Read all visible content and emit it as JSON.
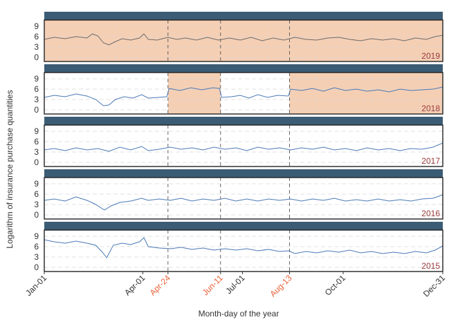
{
  "chart_data": {
    "type": "line",
    "title": "",
    "xlabel": "Month-day of the year",
    "ylabel": "Logarithm of insurance purchase quantities",
    "ylim": [
      0,
      10
    ],
    "y_ticks": [
      "0",
      "3",
      "6",
      "9"
    ],
    "x_ticks": [
      {
        "label": "Jan-01",
        "day": 1,
        "highlight": false
      },
      {
        "label": "Apr-01",
        "day": 91,
        "highlight": false
      },
      {
        "label": "Apr-24",
        "day": 114,
        "highlight": true
      },
      {
        "label": "Jun-11",
        "day": 162,
        "highlight": true
      },
      {
        "label": "Jul-01",
        "day": 182,
        "highlight": false
      },
      {
        "label": "Aug-13",
        "day": 225,
        "highlight": true
      },
      {
        "label": "Oct-01",
        "day": 274,
        "highlight": false
      },
      {
        "label": "Dec-31",
        "day": 365,
        "highlight": false
      }
    ],
    "vlines_days": [
      114,
      162,
      225
    ],
    "grid": true,
    "highlight_tick_color": "#e8623a",
    "year_label_color": "#9b3b3b",
    "strip_color": "#3b5c74",
    "shade_color": "#f5cfb4",
    "panels": [
      {
        "year": "2019",
        "line_color": "#6b6b6b",
        "shaded_ranges": [
          [
            1,
            365
          ]
        ],
        "series": [
          {
            "x": 1,
            "y": 5.2
          },
          {
            "x": 10,
            "y": 5.8
          },
          {
            "x": 20,
            "y": 5.4
          },
          {
            "x": 30,
            "y": 6.0
          },
          {
            "x": 40,
            "y": 5.6
          },
          {
            "x": 45,
            "y": 6.8
          },
          {
            "x": 50,
            "y": 6.2
          },
          {
            "x": 55,
            "y": 4.2
          },
          {
            "x": 60,
            "y": 3.6
          },
          {
            "x": 65,
            "y": 4.4
          },
          {
            "x": 72,
            "y": 5.4
          },
          {
            "x": 80,
            "y": 5.0
          },
          {
            "x": 88,
            "y": 5.6
          },
          {
            "x": 92,
            "y": 6.8
          },
          {
            "x": 96,
            "y": 5.2
          },
          {
            "x": 104,
            "y": 5.0
          },
          {
            "x": 114,
            "y": 5.8
          },
          {
            "x": 122,
            "y": 5.2
          },
          {
            "x": 130,
            "y": 5.6
          },
          {
            "x": 140,
            "y": 5.0
          },
          {
            "x": 150,
            "y": 5.8
          },
          {
            "x": 160,
            "y": 5.0
          },
          {
            "x": 170,
            "y": 5.6
          },
          {
            "x": 180,
            "y": 5.0
          },
          {
            "x": 190,
            "y": 5.8
          },
          {
            "x": 200,
            "y": 4.8
          },
          {
            "x": 210,
            "y": 5.6
          },
          {
            "x": 220,
            "y": 5.0
          },
          {
            "x": 230,
            "y": 5.8
          },
          {
            "x": 240,
            "y": 5.2
          },
          {
            "x": 250,
            "y": 5.0
          },
          {
            "x": 260,
            "y": 5.6
          },
          {
            "x": 270,
            "y": 5.8
          },
          {
            "x": 280,
            "y": 5.2
          },
          {
            "x": 290,
            "y": 4.8
          },
          {
            "x": 300,
            "y": 5.4
          },
          {
            "x": 310,
            "y": 5.0
          },
          {
            "x": 320,
            "y": 5.4
          },
          {
            "x": 330,
            "y": 4.8
          },
          {
            "x": 340,
            "y": 5.6
          },
          {
            "x": 350,
            "y": 5.2
          },
          {
            "x": 358,
            "y": 6.0
          },
          {
            "x": 365,
            "y": 6.4
          }
        ]
      },
      {
        "year": "2018",
        "line_color": "#4a78b5",
        "shaded_ranges": [
          [
            114,
            162
          ],
          [
            225,
            365
          ]
        ],
        "series": [
          {
            "x": 1,
            "y": 3.6
          },
          {
            "x": 10,
            "y": 4.2
          },
          {
            "x": 20,
            "y": 3.8
          },
          {
            "x": 30,
            "y": 4.6
          },
          {
            "x": 40,
            "y": 4.0
          },
          {
            "x": 48,
            "y": 3.0
          },
          {
            "x": 55,
            "y": 1.2
          },
          {
            "x": 60,
            "y": 1.4
          },
          {
            "x": 66,
            "y": 3.0
          },
          {
            "x": 74,
            "y": 3.8
          },
          {
            "x": 82,
            "y": 3.4
          },
          {
            "x": 90,
            "y": 4.4
          },
          {
            "x": 96,
            "y": 3.4
          },
          {
            "x": 105,
            "y": 3.6
          },
          {
            "x": 113,
            "y": 3.8
          },
          {
            "x": 115,
            "y": 6.2
          },
          {
            "x": 125,
            "y": 5.6
          },
          {
            "x": 135,
            "y": 6.4
          },
          {
            "x": 145,
            "y": 5.8
          },
          {
            "x": 155,
            "y": 6.4
          },
          {
            "x": 161,
            "y": 6.2
          },
          {
            "x": 163,
            "y": 3.6
          },
          {
            "x": 172,
            "y": 3.8
          },
          {
            "x": 180,
            "y": 4.2
          },
          {
            "x": 188,
            "y": 3.4
          },
          {
            "x": 196,
            "y": 4.4
          },
          {
            "x": 205,
            "y": 3.6
          },
          {
            "x": 214,
            "y": 4.2
          },
          {
            "x": 224,
            "y": 4.0
          },
          {
            "x": 226,
            "y": 6.0
          },
          {
            "x": 236,
            "y": 5.6
          },
          {
            "x": 246,
            "y": 6.2
          },
          {
            "x": 256,
            "y": 5.4
          },
          {
            "x": 266,
            "y": 6.4
          },
          {
            "x": 276,
            "y": 5.6
          },
          {
            "x": 286,
            "y": 6.0
          },
          {
            "x": 296,
            "y": 5.4
          },
          {
            "x": 306,
            "y": 5.8
          },
          {
            "x": 316,
            "y": 5.2
          },
          {
            "x": 326,
            "y": 6.0
          },
          {
            "x": 336,
            "y": 5.6
          },
          {
            "x": 346,
            "y": 5.8
          },
          {
            "x": 356,
            "y": 6.0
          },
          {
            "x": 365,
            "y": 6.6
          }
        ]
      },
      {
        "year": "2017",
        "line_color": "#4a78b5",
        "shaded_ranges": [],
        "series": [
          {
            "x": 1,
            "y": 3.6
          },
          {
            "x": 10,
            "y": 4.0
          },
          {
            "x": 20,
            "y": 3.4
          },
          {
            "x": 30,
            "y": 4.2
          },
          {
            "x": 40,
            "y": 3.6
          },
          {
            "x": 50,
            "y": 4.0
          },
          {
            "x": 60,
            "y": 3.2
          },
          {
            "x": 70,
            "y": 4.4
          },
          {
            "x": 80,
            "y": 3.6
          },
          {
            "x": 90,
            "y": 4.6
          },
          {
            "x": 96,
            "y": 3.4
          },
          {
            "x": 106,
            "y": 3.8
          },
          {
            "x": 116,
            "y": 4.4
          },
          {
            "x": 126,
            "y": 3.8
          },
          {
            "x": 136,
            "y": 4.2
          },
          {
            "x": 146,
            "y": 3.6
          },
          {
            "x": 156,
            "y": 4.4
          },
          {
            "x": 166,
            "y": 3.8
          },
          {
            "x": 176,
            "y": 4.2
          },
          {
            "x": 186,
            "y": 3.4
          },
          {
            "x": 196,
            "y": 4.4
          },
          {
            "x": 206,
            "y": 3.8
          },
          {
            "x": 216,
            "y": 4.2
          },
          {
            "x": 226,
            "y": 3.6
          },
          {
            "x": 236,
            "y": 4.2
          },
          {
            "x": 246,
            "y": 3.8
          },
          {
            "x": 256,
            "y": 4.4
          },
          {
            "x": 266,
            "y": 3.6
          },
          {
            "x": 276,
            "y": 4.0
          },
          {
            "x": 286,
            "y": 3.4
          },
          {
            "x": 296,
            "y": 4.2
          },
          {
            "x": 306,
            "y": 3.6
          },
          {
            "x": 316,
            "y": 4.0
          },
          {
            "x": 326,
            "y": 3.4
          },
          {
            "x": 336,
            "y": 4.0
          },
          {
            "x": 346,
            "y": 3.8
          },
          {
            "x": 356,
            "y": 4.4
          },
          {
            "x": 365,
            "y": 5.6
          }
        ]
      },
      {
        "year": "2016",
        "line_color": "#4a78b5",
        "shaded_ranges": [],
        "series": [
          {
            "x": 1,
            "y": 4.2
          },
          {
            "x": 10,
            "y": 4.6
          },
          {
            "x": 20,
            "y": 4.0
          },
          {
            "x": 30,
            "y": 5.2
          },
          {
            "x": 40,
            "y": 4.2
          },
          {
            "x": 48,
            "y": 3.0
          },
          {
            "x": 56,
            "y": 1.4
          },
          {
            "x": 62,
            "y": 2.6
          },
          {
            "x": 70,
            "y": 3.6
          },
          {
            "x": 80,
            "y": 4.0
          },
          {
            "x": 90,
            "y": 4.8
          },
          {
            "x": 96,
            "y": 4.2
          },
          {
            "x": 106,
            "y": 4.6
          },
          {
            "x": 116,
            "y": 4.2
          },
          {
            "x": 126,
            "y": 4.8
          },
          {
            "x": 136,
            "y": 4.0
          },
          {
            "x": 146,
            "y": 4.6
          },
          {
            "x": 156,
            "y": 4.2
          },
          {
            "x": 166,
            "y": 4.8
          },
          {
            "x": 176,
            "y": 4.0
          },
          {
            "x": 186,
            "y": 4.6
          },
          {
            "x": 196,
            "y": 4.0
          },
          {
            "x": 206,
            "y": 4.6
          },
          {
            "x": 216,
            "y": 4.2
          },
          {
            "x": 226,
            "y": 4.6
          },
          {
            "x": 236,
            "y": 4.0
          },
          {
            "x": 246,
            "y": 4.6
          },
          {
            "x": 256,
            "y": 4.2
          },
          {
            "x": 266,
            "y": 4.8
          },
          {
            "x": 276,
            "y": 4.0
          },
          {
            "x": 286,
            "y": 4.4
          },
          {
            "x": 296,
            "y": 4.0
          },
          {
            "x": 306,
            "y": 4.6
          },
          {
            "x": 316,
            "y": 4.0
          },
          {
            "x": 326,
            "y": 4.4
          },
          {
            "x": 336,
            "y": 4.0
          },
          {
            "x": 346,
            "y": 4.6
          },
          {
            "x": 356,
            "y": 4.8
          },
          {
            "x": 365,
            "y": 5.8
          }
        ]
      },
      {
        "year": "2015",
        "line_color": "#4a78b5",
        "shaded_ranges": [],
        "series": [
          {
            "x": 1,
            "y": 8.0
          },
          {
            "x": 10,
            "y": 7.4
          },
          {
            "x": 20,
            "y": 7.0
          },
          {
            "x": 30,
            "y": 7.6
          },
          {
            "x": 40,
            "y": 7.0
          },
          {
            "x": 48,
            "y": 6.4
          },
          {
            "x": 54,
            "y": 4.4
          },
          {
            "x": 58,
            "y": 2.8
          },
          {
            "x": 64,
            "y": 6.4
          },
          {
            "x": 72,
            "y": 7.0
          },
          {
            "x": 80,
            "y": 6.6
          },
          {
            "x": 88,
            "y": 7.4
          },
          {
            "x": 92,
            "y": 8.6
          },
          {
            "x": 96,
            "y": 6.0
          },
          {
            "x": 106,
            "y": 5.6
          },
          {
            "x": 116,
            "y": 5.4
          },
          {
            "x": 126,
            "y": 5.8
          },
          {
            "x": 136,
            "y": 5.2
          },
          {
            "x": 146,
            "y": 5.6
          },
          {
            "x": 156,
            "y": 5.0
          },
          {
            "x": 166,
            "y": 5.4
          },
          {
            "x": 176,
            "y": 5.0
          },
          {
            "x": 186,
            "y": 5.4
          },
          {
            "x": 196,
            "y": 4.8
          },
          {
            "x": 206,
            "y": 5.2
          },
          {
            "x": 216,
            "y": 4.6
          },
          {
            "x": 224,
            "y": 4.8
          },
          {
            "x": 230,
            "y": 4.0
          },
          {
            "x": 240,
            "y": 4.6
          },
          {
            "x": 250,
            "y": 4.2
          },
          {
            "x": 260,
            "y": 4.8
          },
          {
            "x": 270,
            "y": 4.4
          },
          {
            "x": 280,
            "y": 5.0
          },
          {
            "x": 290,
            "y": 4.2
          },
          {
            "x": 300,
            "y": 4.6
          },
          {
            "x": 310,
            "y": 4.0
          },
          {
            "x": 320,
            "y": 4.4
          },
          {
            "x": 330,
            "y": 4.0
          },
          {
            "x": 340,
            "y": 4.6
          },
          {
            "x": 350,
            "y": 4.2
          },
          {
            "x": 358,
            "y": 5.0
          },
          {
            "x": 365,
            "y": 6.2
          }
        ]
      }
    ]
  }
}
